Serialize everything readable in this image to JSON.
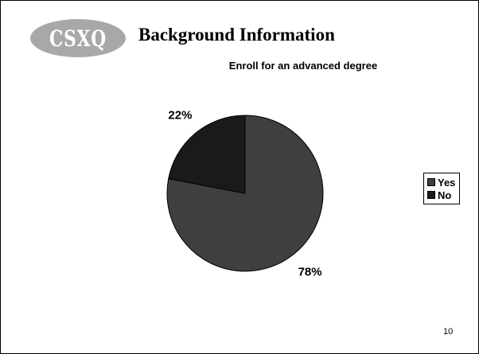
{
  "logo": {
    "text": "CSXQ",
    "fill_color": "#a8a8a8"
  },
  "slide_title": "Background Information",
  "page_number": "10",
  "chart_data": {
    "type": "pie",
    "title": "Enroll for an advanced degree",
    "categories": [
      "Yes",
      "No"
    ],
    "values": [
      78,
      22
    ],
    "labels": [
      "78%",
      "22%"
    ],
    "colors": [
      "#3f3f3f",
      "#1a1a1a"
    ],
    "legend_placement": "right"
  }
}
